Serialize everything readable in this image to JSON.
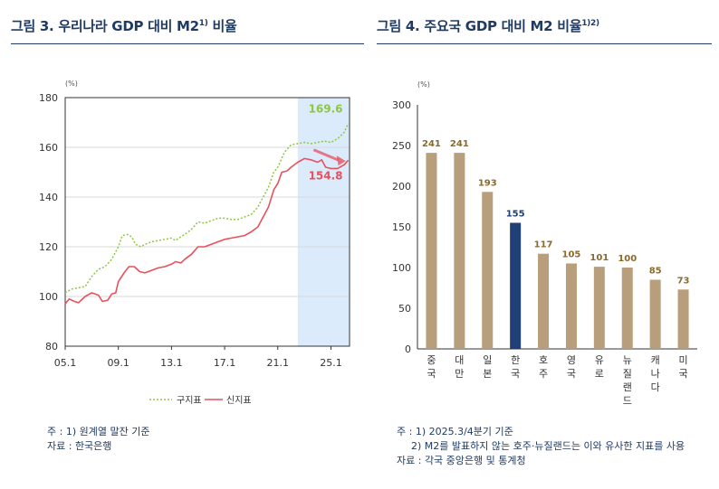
{
  "left": {
    "title": "그림 3. 우리나라 GDP 대비 M2",
    "title_sup": "1)",
    "title_tail": " 비율",
    "notes": [
      "주 : 1) 원계열 말잔 기준",
      "자료 : 한국은행"
    ]
  },
  "right": {
    "title": "그림 4. 주요국 GDP 대비 M2 비율",
    "title_sup": "1)2)",
    "notes": [
      "주 : 1) 2025.3/4분기 기준",
      "2) M2를 발표하지 않는 호주·뉴질랜드는 이와 유사한 지표를 사용",
      "자료 : 각국 중앙은행 및 통계청"
    ]
  },
  "chart_data": [
    {
      "type": "line",
      "unit": "(%)",
      "ylim": [
        80,
        180
      ],
      "yticks": [
        80,
        100,
        120,
        140,
        160,
        180
      ],
      "xlim": [
        2005.0,
        2026.4
      ],
      "xticks": [
        {
          "label": "05.1",
          "x": 2005.0
        },
        {
          "label": "09.1",
          "x": 2009.0
        },
        {
          "label": "13.1",
          "x": 2013.0
        },
        {
          "label": "17.1",
          "x": 2017.0
        },
        {
          "label": "21.1",
          "x": 2021.0
        },
        {
          "label": "25.1",
          "x": 2025.0
        }
      ],
      "highlight_range": [
        2022.5,
        2026.4
      ],
      "highlight_color": "#dcebfb",
      "series": [
        {
          "name": "구지표",
          "color": "#8dc63f",
          "style": "dotted",
          "end_label": "169.6",
          "points": [
            [
              2005.0,
              101.5
            ],
            [
              2005.5,
              103
            ],
            [
              2006.0,
              103.5
            ],
            [
              2006.5,
              104
            ],
            [
              2007.0,
              108
            ],
            [
              2007.5,
              111
            ],
            [
              2008.0,
              112
            ],
            [
              2008.5,
              115
            ],
            [
              2009.0,
              120
            ],
            [
              2009.3,
              124.5
            ],
            [
              2009.7,
              125
            ],
            [
              2010.0,
              124
            ],
            [
              2010.3,
              121
            ],
            [
              2010.7,
              120
            ],
            [
              2011.0,
              121
            ],
            [
              2011.5,
              122
            ],
            [
              2012.0,
              122.5
            ],
            [
              2012.5,
              123
            ],
            [
              2013.0,
              123.5
            ],
            [
              2013.3,
              122.5
            ],
            [
              2013.7,
              124
            ],
            [
              2014.0,
              125
            ],
            [
              2014.5,
              127
            ],
            [
              2015.0,
              130
            ],
            [
              2015.5,
              129.5
            ],
            [
              2016.0,
              130.5
            ],
            [
              2016.5,
              131.5
            ],
            [
              2017.0,
              131.5
            ],
            [
              2017.5,
              131
            ],
            [
              2018.0,
              131
            ],
            [
              2018.5,
              132
            ],
            [
              2019.0,
              133
            ],
            [
              2019.5,
              136
            ],
            [
              2020.0,
              141
            ],
            [
              2020.3,
              144
            ],
            [
              2020.7,
              150
            ],
            [
              2021.0,
              152
            ],
            [
              2021.5,
              158
            ],
            [
              2022.0,
              161
            ],
            [
              2022.5,
              161.5
            ],
            [
              2023.0,
              162
            ],
            [
              2023.5,
              161.5
            ],
            [
              2024.0,
              162
            ],
            [
              2024.5,
              162.5
            ],
            [
              2025.0,
              162
            ],
            [
              2025.5,
              163.5
            ],
            [
              2026.0,
              166
            ],
            [
              2026.3,
              169.6
            ]
          ]
        },
        {
          "name": "신지표",
          "color": "#e8505b",
          "style": "solid",
          "end_label": "154.8",
          "points": [
            [
              2005.0,
              97
            ],
            [
              2005.3,
              99
            ],
            [
              2005.7,
              98
            ],
            [
              2006.0,
              97.5
            ],
            [
              2006.5,
              100
            ],
            [
              2007.0,
              101.5
            ],
            [
              2007.5,
              100.5
            ],
            [
              2007.8,
              98
            ],
            [
              2008.2,
              98.5
            ],
            [
              2008.5,
              101
            ],
            [
              2008.8,
              101.5
            ],
            [
              2009.0,
              106
            ],
            [
              2009.5,
              110
            ],
            [
              2009.8,
              112
            ],
            [
              2010.2,
              112
            ],
            [
              2010.6,
              110
            ],
            [
              2011.0,
              109.5
            ],
            [
              2011.5,
              110.5
            ],
            [
              2012.0,
              111.5
            ],
            [
              2012.5,
              112
            ],
            [
              2013.0,
              113
            ],
            [
              2013.3,
              114
            ],
            [
              2013.7,
              113.5
            ],
            [
              2014.0,
              115
            ],
            [
              2014.5,
              117
            ],
            [
              2015.0,
              120
            ],
            [
              2015.5,
              120
            ],
            [
              2016.0,
              121
            ],
            [
              2016.5,
              122
            ],
            [
              2017.0,
              123
            ],
            [
              2017.5,
              123.5
            ],
            [
              2018.0,
              124
            ],
            [
              2018.5,
              124.5
            ],
            [
              2019.0,
              126
            ],
            [
              2019.5,
              128
            ],
            [
              2020.0,
              133
            ],
            [
              2020.3,
              136
            ],
            [
              2020.7,
              143
            ],
            [
              2021.0,
              145.5
            ],
            [
              2021.3,
              150
            ],
            [
              2021.7,
              150.5
            ],
            [
              2022.0,
              152
            ],
            [
              2022.5,
              154
            ],
            [
              2023.0,
              155.5
            ],
            [
              2023.5,
              155
            ],
            [
              2024.0,
              154
            ],
            [
              2024.3,
              155
            ],
            [
              2024.6,
              152
            ],
            [
              2025.0,
              151.5
            ],
            [
              2025.5,
              151.5
            ],
            [
              2026.0,
              153
            ],
            [
              2026.3,
              154.8
            ]
          ]
        }
      ]
    },
    {
      "type": "bar",
      "unit": "(%)",
      "ylim": [
        0,
        300
      ],
      "yticks": [
        0,
        50,
        100,
        150,
        200,
        250,
        300
      ],
      "bar_color": "#b99e7b",
      "highlight_color": "#1f3f77",
      "highlight_index": 3,
      "label_color": "#8a6a2c",
      "highlight_label_color": "#1f3f77",
      "categories": [
        "중국",
        "대만",
        "일본",
        "한국",
        "호주",
        "영국",
        "유로",
        "뉴질랜드",
        "캐나다",
        "미국"
      ],
      "values": [
        241,
        241,
        193,
        155,
        117,
        105,
        101,
        100,
        85,
        73
      ]
    }
  ]
}
